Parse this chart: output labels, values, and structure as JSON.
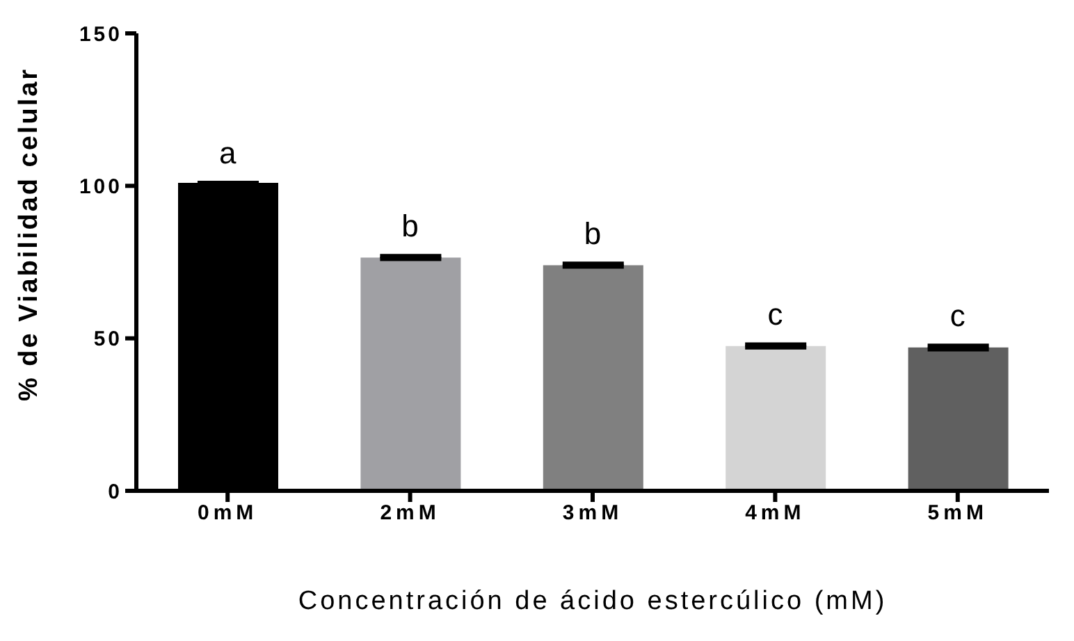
{
  "chart_data": {
    "type": "bar",
    "xlabel": "Concentración de ácido estercúlico (mM)",
    "ylabel": "% de Viabilidad celular",
    "categories": [
      "0mM",
      "2mM",
      "3mM",
      "4mM",
      "5mM"
    ],
    "values": [
      101,
      76.5,
      74,
      47.5,
      47
    ],
    "errors": [
      null,
      0.5,
      0.5,
      0.5,
      0.6
    ],
    "colors": [
      "#000000",
      "#a0a0a4",
      "#808080",
      "#d4d4d4",
      "#606060"
    ],
    "ylim": [
      0,
      150
    ],
    "yticks": [
      0,
      50,
      100,
      150
    ],
    "grid": false,
    "legend": false,
    "annotations": [
      {
        "text": "a",
        "x": "0mM",
        "y": 101
      },
      {
        "text": "b",
        "x": "2mM",
        "y": 77
      },
      {
        "text": "b",
        "x": "3mM",
        "y": 74.5
      },
      {
        "text": "c",
        "x": "4mM",
        "y": 48
      },
      {
        "text": "c",
        "x": "5mM",
        "y": 47.6
      }
    ]
  }
}
